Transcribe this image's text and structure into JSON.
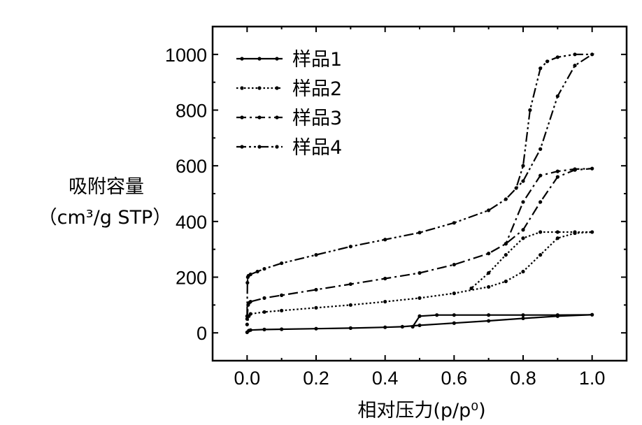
{
  "chart_data": {
    "type": "line",
    "title": "",
    "xlabel": "相对压力(p/p⁰)",
    "ylabel_line1": "吸附容量",
    "ylabel_line2": "（cm³/g STP）",
    "xlim": [
      -0.1,
      1.1
    ],
    "ylim": [
      -100,
      1100
    ],
    "xticks": [
      0.0,
      0.2,
      0.4,
      0.6,
      0.8,
      1.0
    ],
    "xtick_labels": [
      "0.0",
      "0.2",
      "0.4",
      "0.6",
      "0.8",
      "1.0"
    ],
    "yticks": [
      0,
      200,
      400,
      600,
      800,
      1000
    ],
    "ytick_labels": [
      "0",
      "200",
      "400",
      "600",
      "800",
      "1000"
    ],
    "grid": false,
    "legend_position": "top-left",
    "series": [
      {
        "name": "样品1",
        "dash": "solid",
        "x": [
          0.0,
          0.005,
          0.01,
          0.05,
          0.1,
          0.2,
          0.3,
          0.4,
          0.45,
          0.5,
          0.6,
          0.7,
          0.8,
          0.9,
          1.0,
          0.9,
          0.8,
          0.7,
          0.6,
          0.55,
          0.5,
          0.48
        ],
        "y": [
          2,
          8,
          10,
          12,
          13,
          15,
          17,
          20,
          22,
          27,
          35,
          43,
          52,
          60,
          65,
          64,
          64,
          64,
          64,
          64,
          60,
          22
        ]
      },
      {
        "name": "样品2",
        "dash": "dotted",
        "x": [
          0.0,
          0.005,
          0.01,
          0.05,
          0.1,
          0.2,
          0.3,
          0.4,
          0.5,
          0.6,
          0.7,
          0.75,
          0.8,
          0.85,
          0.9,
          0.95,
          1.0,
          0.95,
          0.9,
          0.85,
          0.8,
          0.75,
          0.7,
          0.65
        ],
        "y": [
          30,
          60,
          68,
          75,
          80,
          90,
          100,
          112,
          125,
          142,
          165,
          185,
          220,
          280,
          340,
          358,
          362,
          362,
          362,
          362,
          340,
          280,
          215,
          160
        ]
      },
      {
        "name": "样品3",
        "dash": "dashdot",
        "x": [
          0.0,
          0.003,
          0.006,
          0.01,
          0.05,
          0.1,
          0.2,
          0.3,
          0.4,
          0.5,
          0.6,
          0.7,
          0.75,
          0.8,
          0.85,
          0.9,
          0.95,
          1.0,
          0.95,
          0.9,
          0.85,
          0.8,
          0.75
        ],
        "y": [
          50,
          100,
          108,
          112,
          125,
          135,
          155,
          175,
          195,
          215,
          245,
          285,
          320,
          370,
          470,
          560,
          585,
          590,
          588,
          580,
          565,
          470,
          320
        ]
      },
      {
        "name": "样品4",
        "dash": "dashdotdot",
        "x": [
          0.0,
          0.001,
          0.002,
          0.004,
          0.01,
          0.03,
          0.05,
          0.1,
          0.2,
          0.3,
          0.4,
          0.5,
          0.6,
          0.7,
          0.75,
          0.8,
          0.85,
          0.9,
          0.95,
          1.0,
          0.95,
          0.9,
          0.87,
          0.85,
          0.82,
          0.8,
          0.78
        ],
        "y": [
          60,
          180,
          200,
          205,
          210,
          220,
          230,
          250,
          280,
          310,
          335,
          360,
          395,
          440,
          480,
          545,
          660,
          850,
          960,
          1000,
          1000,
          990,
          975,
          950,
          800,
          600,
          520
        ]
      }
    ]
  }
}
